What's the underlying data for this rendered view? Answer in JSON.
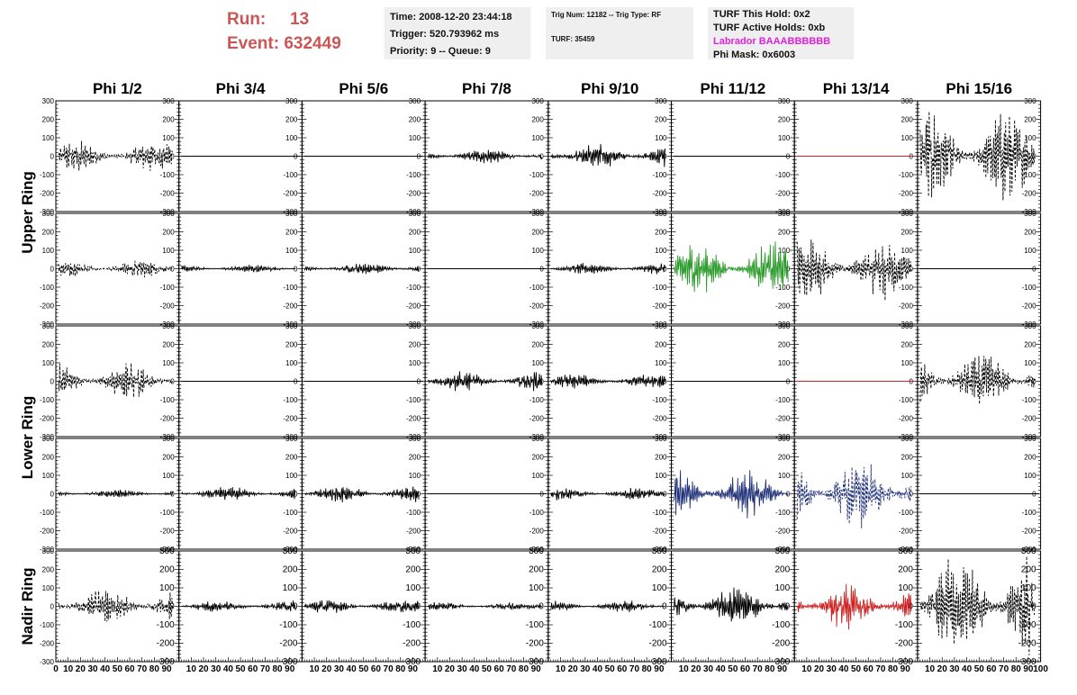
{
  "header": {
    "run_label": "Run:",
    "run_value": "13",
    "event_label": "Event:",
    "event_value": "632449",
    "time": "Time: 2008-12-20 23:44:18",
    "trigger": "Trigger: 520.793962 ms",
    "priority": "Priority: 9 -- Queue: 9",
    "trig_num": "Trig Num: 12182 -- Trig Type: RF",
    "turf": "TURF: 35459",
    "turf_hold": "TURF This Hold: 0x2",
    "turf_active": "TURF Active Holds: 0xb",
    "labrador": "Labrador BAAABBBBBB",
    "phi_mask": "Phi Mask: 0x6003",
    "run_color": "#cc5555",
    "labrador_color": "#e020e0"
  },
  "chart_data": {
    "type": "line",
    "columns": [
      "Phi 1/2",
      "Phi 3/4",
      "Phi 5/6",
      "Phi 7/8",
      "Phi 9/10",
      "Phi 11/12",
      "Phi 13/14",
      "Phi 15/16"
    ],
    "ring_labels": [
      {
        "name": "Upper Ring",
        "rows": [
          0,
          1
        ]
      },
      {
        "name": "Lower Ring",
        "rows": [
          2,
          3
        ]
      },
      {
        "name": "Nadir Ring",
        "rows": [
          4
        ]
      }
    ],
    "ylim": [
      -300,
      300
    ],
    "xlim": [
      0,
      100
    ],
    "y_ticks": [
      "300",
      "200",
      "100",
      "0",
      "-100",
      "-200",
      "-300"
    ],
    "x_ticks": [
      "0",
      "10",
      "20",
      "30",
      "40",
      "50",
      "60",
      "70",
      "80",
      "90",
      "100"
    ],
    "grid": false,
    "panels": [
      [
        {
          "amp": 55,
          "style": "dashed",
          "color": "#000000"
        },
        {
          "amp": 0,
          "style": "flat",
          "color": "#000000"
        },
        {
          "amp": 0,
          "style": "flat",
          "color": "#000000"
        },
        {
          "amp": 25,
          "style": "solid",
          "color": "#000000"
        },
        {
          "amp": 45,
          "style": "solid",
          "color": "#000000"
        },
        {
          "amp": 0,
          "style": "flat",
          "color": "#000000"
        },
        {
          "amp": 0,
          "style": "flat",
          "color": "#cc2222"
        },
        {
          "amp": 160,
          "style": "dashed",
          "color": "#000000"
        }
      ],
      [
        {
          "amp": 30,
          "style": "dashed",
          "color": "#000000"
        },
        {
          "amp": 15,
          "style": "solid",
          "color": "#000000"
        },
        {
          "amp": 20,
          "style": "solid",
          "color": "#000000"
        },
        {
          "amp": 0,
          "style": "flat",
          "color": "#000000"
        },
        {
          "amp": 20,
          "style": "solid",
          "color": "#000000"
        },
        {
          "amp": 90,
          "style": "solid",
          "color": "#2a9a2a"
        },
        {
          "amp": 110,
          "style": "dashed",
          "color": "#000000"
        },
        {
          "amp": 0,
          "style": "flat",
          "color": "#000000"
        }
      ],
      [
        {
          "amp": 65,
          "style": "dashed",
          "color": "#000000"
        },
        {
          "amp": 0,
          "style": "flat",
          "color": "#000000"
        },
        {
          "amp": 0,
          "style": "flat",
          "color": "#000000"
        },
        {
          "amp": 35,
          "style": "solid",
          "color": "#000000"
        },
        {
          "amp": 25,
          "style": "solid",
          "color": "#000000"
        },
        {
          "amp": 0,
          "style": "flat",
          "color": "#000000"
        },
        {
          "amp": 0,
          "style": "flat",
          "color": "#cc2222"
        },
        {
          "amp": 100,
          "style": "dashed",
          "color": "#000000"
        }
      ],
      [
        {
          "amp": 15,
          "style": "solid",
          "color": "#000000"
        },
        {
          "amp": 25,
          "style": "solid",
          "color": "#000000"
        },
        {
          "amp": 30,
          "style": "solid",
          "color": "#000000"
        },
        {
          "amp": 0,
          "style": "flat",
          "color": "#000000"
        },
        {
          "amp": 22,
          "style": "solid",
          "color": "#000000"
        },
        {
          "amp": 85,
          "style": "solid",
          "color": "#22337a"
        },
        {
          "amp": 130,
          "style": "dashed",
          "color": "#22337a"
        },
        {
          "amp": 0,
          "style": "flat",
          "color": "#000000"
        }
      ],
      [
        {
          "amp": 70,
          "style": "dashed",
          "color": "#000000"
        },
        {
          "amp": 20,
          "style": "solid",
          "color": "#000000"
        },
        {
          "amp": 25,
          "style": "solid",
          "color": "#000000"
        },
        {
          "amp": 15,
          "style": "solid",
          "color": "#000000"
        },
        {
          "amp": 20,
          "style": "solid",
          "color": "#000000"
        },
        {
          "amp": 70,
          "style": "solid",
          "color": "#000000"
        },
        {
          "amp": 80,
          "style": "solid",
          "color": "#cc2222"
        },
        {
          "amp": 190,
          "style": "dashed",
          "color": "#000000"
        }
      ]
    ]
  }
}
